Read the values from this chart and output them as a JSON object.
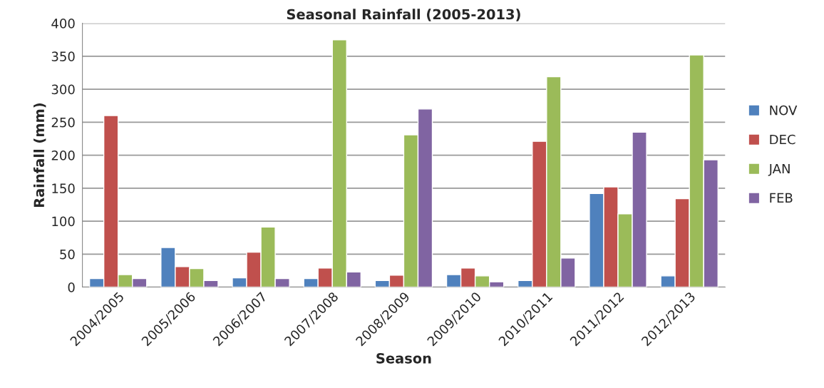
{
  "chart_data": {
    "type": "bar",
    "title": "Seasonal Rainfall (2005-2013)",
    "xlabel": "Season",
    "ylabel": "Rainfall (mm)",
    "categories": [
      "2004/2005",
      "2005/2006",
      "2006/2007",
      "2007/2008",
      "2008/2009",
      "2009/2010",
      "2010/2011",
      "2011/2012",
      "2012/2013"
    ],
    "series": [
      {
        "name": "NOV",
        "color": "#4f81bd",
        "values": [
          13,
          60,
          14,
          13,
          10,
          19,
          10,
          142,
          17
        ]
      },
      {
        "name": "DEC",
        "color": "#c0504d",
        "values": [
          260,
          31,
          53,
          29,
          18,
          29,
          221,
          152,
          134
        ]
      },
      {
        "name": "JAN",
        "color": "#9bbb59",
        "values": [
          19,
          28,
          91,
          375,
          231,
          17,
          319,
          111,
          352
        ]
      },
      {
        "name": "FEB",
        "color": "#8064a2",
        "values": [
          13,
          10,
          13,
          23,
          270,
          8,
          44,
          235,
          193
        ]
      }
    ],
    "ylim": [
      0,
      400
    ],
    "yticks": [
      0,
      50,
      100,
      150,
      200,
      250,
      300,
      350,
      400
    ],
    "grid": "y",
    "legend": "right"
  }
}
